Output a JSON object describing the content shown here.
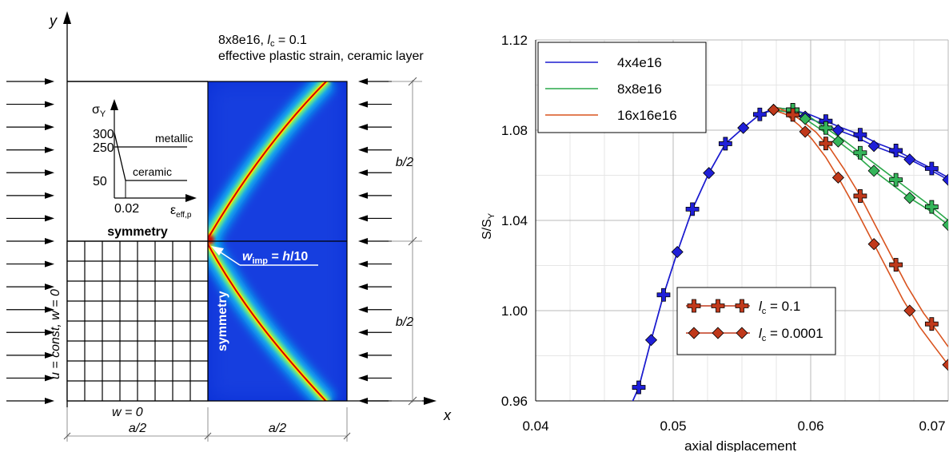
{
  "left_figure": {
    "axis_y": "y",
    "axis_x": "x",
    "title_line1_prefix": "8x8e16, ",
    "title_line1_lc": "l",
    "title_line1_lc_sub": "c",
    "title_line1_suffix": " = 0.1",
    "title_line2": "effective plastic strain, ceramic layer",
    "inset": {
      "sigma": "σ",
      "sigma_sub": "Y",
      "tick_300": "300",
      "tick_250": "250",
      "tick_50": "50",
      "tick_002": "0.02",
      "eps": "ε",
      "eps_sub": "eff,p",
      "label_metallic": "metallic",
      "label_ceramic": "ceramic"
    },
    "symmetry_top": "symmetry",
    "symmetry_side": "symmetry",
    "imperfection_w": "w",
    "imperfection_sub": "imp",
    "imperfection_eq": " = ",
    "imperfection_h": "h",
    "imperfection_tail": "/10",
    "bc_left": "u = const, w = 0",
    "bc_bottom": "w = 0",
    "dim_a2_left": "a/2",
    "dim_a2_right": "a/2",
    "dim_b2_top": "b/2",
    "dim_b2_bottom": "b/2",
    "colors": {
      "contour_background": "#0a2fd6",
      "band_core": "#d40000",
      "band_mid": "#f5e400",
      "band_outer": "#12d4f0"
    }
  },
  "chart_data": {
    "type": "line",
    "xlabel": "axial displacement",
    "ylabel": "S/S",
    "ylabel_sub": "Y",
    "xlim": [
      0.04,
      0.07
    ],
    "ylim": [
      0.96,
      1.12
    ],
    "x_ticks": [
      "0.04",
      "0.05",
      "0.06",
      "0.07"
    ],
    "y_ticks": [
      "0.96",
      "1.00",
      "1.04",
      "1.08",
      "1.12"
    ],
    "grid": true,
    "legend_mesh": {
      "placement": "top-left",
      "entries": [
        {
          "label": "4x4e16",
          "color": "#1c1ccf"
        },
        {
          "label": "8x8e16",
          "color": "#2aa84a"
        },
        {
          "label": "16x16e16",
          "color": "#d9531e"
        }
      ]
    },
    "legend_lc": {
      "placement": "bottom-center",
      "entries": [
        {
          "prefix": "l",
          "sub": "c",
          "suffix": " = 0.1",
          "marker": "plus"
        },
        {
          "prefix": "l",
          "sub": "c",
          "suffix": " = 0.0001",
          "marker": "diamond"
        }
      ],
      "marker_color": "#c0391b"
    },
    "series": [
      {
        "name": "4x4e16",
        "lc": "0.0001",
        "color": "#1c1ccf",
        "x": [
          0.0467,
          0.0475,
          0.0484,
          0.0493,
          0.0503,
          0.0514,
          0.0526,
          0.0538,
          0.0551,
          0.0563,
          0.0573,
          0.0584,
          0.0596,
          0.0608,
          0.062,
          0.0633,
          0.0646,
          0.0659,
          0.0672,
          0.0685,
          0.07
        ],
        "y": [
          0.955,
          0.966,
          0.987,
          1.007,
          1.026,
          1.045,
          1.061,
          1.074,
          1.081,
          1.087,
          1.089,
          1.088,
          1.086,
          1.083,
          1.08,
          1.077,
          1.073,
          1.07,
          1.067,
          1.063,
          1.058
        ]
      },
      {
        "name": "4x4e16",
        "lc": "0.1",
        "color": "#1c1ccf",
        "x": [
          0.0467,
          0.0475,
          0.0484,
          0.0493,
          0.0503,
          0.0514,
          0.0526,
          0.0538,
          0.0551,
          0.0563,
          0.0575,
          0.0587,
          0.0599,
          0.0611,
          0.0623,
          0.0636,
          0.0649,
          0.0662,
          0.0675,
          0.0688,
          0.07
        ],
        "y": [
          0.955,
          0.966,
          0.987,
          1.007,
          1.026,
          1.045,
          1.061,
          1.074,
          1.081,
          1.087,
          1.09,
          1.089,
          1.087,
          1.084,
          1.081,
          1.078,
          1.074,
          1.071,
          1.067,
          1.063,
          1.059
        ]
      },
      {
        "name": "8x8e16",
        "lc": "0.0001",
        "color": "#2aa84a",
        "x": [
          0.0573,
          0.0584,
          0.0596,
          0.0608,
          0.062,
          0.0633,
          0.0646,
          0.0659,
          0.0672,
          0.0685,
          0.07
        ],
        "y": [
          1.089,
          1.088,
          1.085,
          1.08,
          1.075,
          1.069,
          1.062,
          1.056,
          1.05,
          1.045,
          1.038
        ]
      },
      {
        "name": "8x8e16",
        "lc": "0.1",
        "color": "#2aa84a",
        "x": [
          0.0575,
          0.0587,
          0.0599,
          0.0611,
          0.0623,
          0.0636,
          0.0649,
          0.0662,
          0.0675,
          0.0688,
          0.07
        ],
        "y": [
          1.09,
          1.089,
          1.086,
          1.081,
          1.076,
          1.07,
          1.064,
          1.058,
          1.052,
          1.046,
          1.04
        ]
      },
      {
        "name": "16x16e16",
        "lc": "0.0001",
        "color": "#d9531e",
        "x": [
          0.0573,
          0.0582,
          0.0592,
          0.0601,
          0.0611,
          0.0621,
          0.0632,
          0.0643,
          0.0655,
          0.0667,
          0.0679,
          0.069,
          0.07
        ],
        "y": [
          1.089,
          1.087,
          1.082,
          1.076,
          1.068,
          1.058,
          1.046,
          1.033,
          1.019,
          1.005,
          0.993,
          0.984,
          0.976
        ]
      },
      {
        "name": "16x16e16",
        "lc": "0.1",
        "color": "#d9531e",
        "x": [
          0.0575,
          0.0584,
          0.0594,
          0.0604,
          0.0614,
          0.0624,
          0.0635,
          0.0646,
          0.0658,
          0.067,
          0.0682,
          0.0693,
          0.07
        ],
        "y": [
          1.09,
          1.088,
          1.084,
          1.079,
          1.072,
          1.063,
          1.052,
          1.039,
          1.025,
          1.011,
          0.999,
          0.99,
          0.984
        ]
      }
    ],
    "markers": {
      "diamond_x": [
        0.0484,
        0.0503,
        0.0526,
        0.0551,
        0.0573,
        0.0596,
        0.062,
        0.0646,
        0.0672,
        0.07
      ],
      "plus_x": [
        0.0475,
        0.0493,
        0.0514,
        0.0538,
        0.0563,
        0.0587,
        0.0611,
        0.0636,
        0.0662,
        0.0688
      ]
    }
  }
}
